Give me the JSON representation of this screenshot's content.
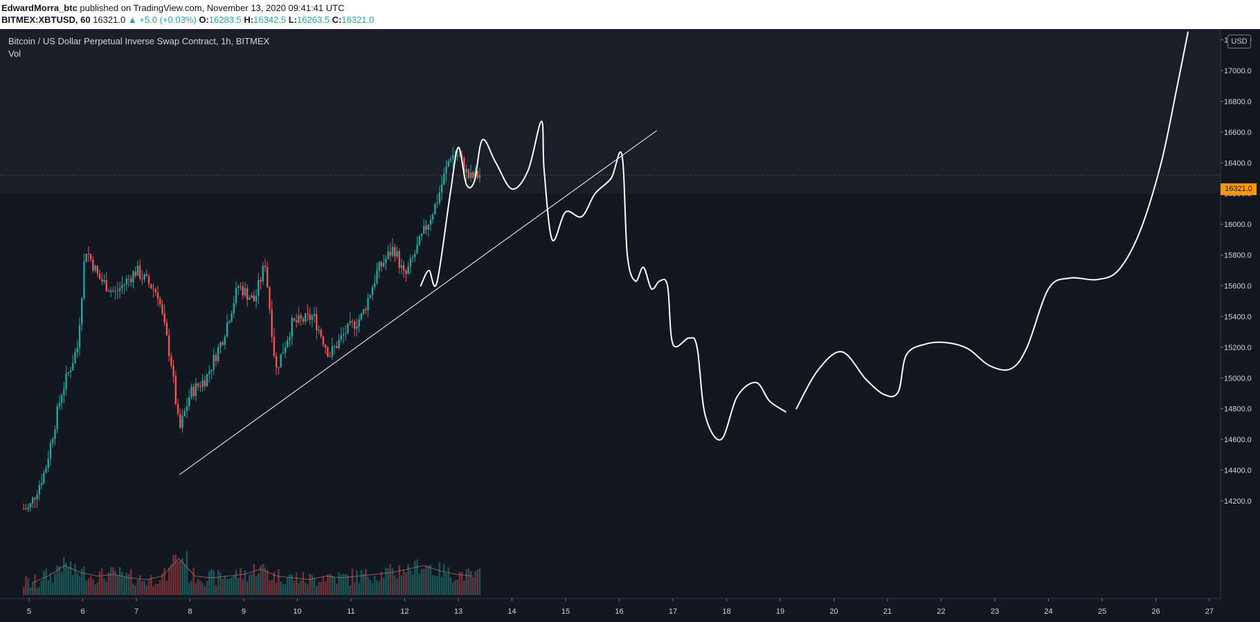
{
  "header": {
    "author": "EdwardMorra_btc",
    "published": " published on TradingView.com, November 13, 2020 09:41:41 UTC",
    "symbol": "BITMEX:XBTUSD, 60",
    "last": "16321.0",
    "change": "▲ +5.0 (+0.03%)",
    "o_label": "O:",
    "o_value": "16283.5",
    "h_label": "H:",
    "h_value": "16342.5",
    "l_label": "L:",
    "l_value": "16263.5",
    "c_label": "C:",
    "c_value": "16321.0"
  },
  "legend": {
    "title": "Bitcoin / US Dollar Perpetual Inverse Swap Contract, 1h, BITMEX",
    "vol": "Vol"
  },
  "price_axis": {
    "currency": "USD",
    "current_price": "16321.0",
    "ticks": [
      "17200.0",
      "17000.0",
      "16800.0",
      "16600.0",
      "16400.0",
      "16200.0",
      "16000.0",
      "15800.0",
      "15600.0",
      "15400.0",
      "15200.0",
      "15000.0",
      "14800.0",
      "14600.0",
      "14400.0",
      "14200.0"
    ]
  },
  "colors": {
    "background": "#131722",
    "up": "#26a69a",
    "down": "#ef5350",
    "drawing": "#ffffff",
    "current_price": "#ff9800"
  },
  "chart_data": {
    "type": "candlestick",
    "x_unit": "day of November 2020",
    "x": [
      5,
      6,
      7,
      8,
      9,
      10,
      11,
      12,
      13,
      14,
      15,
      16,
      17,
      18,
      19,
      20,
      21,
      22,
      23,
      24,
      25,
      26,
      27
    ],
    "ylim": [
      14100,
      17200
    ],
    "price_points": [
      {
        "day": 5.0,
        "price": 14150
      },
      {
        "day": 5.3,
        "price": 14400
      },
      {
        "day": 5.6,
        "price": 14900
      },
      {
        "day": 5.9,
        "price": 15200
      },
      {
        "day": 6.05,
        "price": 15850
      },
      {
        "day": 6.3,
        "price": 15650
      },
      {
        "day": 6.6,
        "price": 15550
      },
      {
        "day": 7.0,
        "price": 15700
      },
      {
        "day": 7.4,
        "price": 15550
      },
      {
        "day": 7.65,
        "price": 15100
      },
      {
        "day": 7.8,
        "price": 14650
      },
      {
        "day": 8.0,
        "price": 14900
      },
      {
        "day": 8.3,
        "price": 15000
      },
      {
        "day": 8.6,
        "price": 15250
      },
      {
        "day": 8.9,
        "price": 15600
      },
      {
        "day": 9.2,
        "price": 15500
      },
      {
        "day": 9.4,
        "price": 15750
      },
      {
        "day": 9.6,
        "price": 15050
      },
      {
        "day": 9.9,
        "price": 15350
      },
      {
        "day": 10.3,
        "price": 15400
      },
      {
        "day": 10.6,
        "price": 15150
      },
      {
        "day": 10.9,
        "price": 15300
      },
      {
        "day": 11.2,
        "price": 15400
      },
      {
        "day": 11.5,
        "price": 15700
      },
      {
        "day": 11.8,
        "price": 15850
      },
      {
        "day": 12.0,
        "price": 15650
      },
      {
        "day": 12.3,
        "price": 15900
      },
      {
        "day": 12.6,
        "price": 16150
      },
      {
        "day": 12.85,
        "price": 16450
      },
      {
        "day": 13.0,
        "price": 16450
      },
      {
        "day": 13.2,
        "price": 16300
      },
      {
        "day": 13.4,
        "price": 16321
      }
    ],
    "volume_scale": "relative 0–1",
    "volume_profile": [
      0.1,
      0.3,
      0.6,
      0.4,
      0.3,
      0.35,
      0.25,
      0.2,
      0.3,
      0.8,
      0.3,
      0.25,
      0.3,
      0.35,
      0.5,
      0.3,
      0.25,
      0.2,
      0.3,
      0.25,
      0.3,
      0.35,
      0.4,
      0.5,
      0.6,
      0.45,
      0.35,
      0.3
    ],
    "drawings": {
      "trendline": [
        {
          "day": 7.8,
          "price": 14370
        },
        {
          "day": 16.7,
          "price": 16610
        }
      ],
      "forecast_path": [
        {
          "day": 12.3,
          "price": 15600
        },
        {
          "day": 12.45,
          "price": 15700
        },
        {
          "day": 12.6,
          "price": 15620
        },
        {
          "day": 12.85,
          "price": 16200
        },
        {
          "day": 13.0,
          "price": 16500
        },
        {
          "day": 13.15,
          "price": 16260
        },
        {
          "day": 13.3,
          "price": 16280
        },
        {
          "day": 13.45,
          "price": 16550
        },
        {
          "day": 13.7,
          "price": 16400
        },
        {
          "day": 14.0,
          "price": 16230
        },
        {
          "day": 14.3,
          "price": 16350
        },
        {
          "day": 14.55,
          "price": 16670
        },
        {
          "day": 14.6,
          "price": 16350
        },
        {
          "day": 14.75,
          "price": 15900
        },
        {
          "day": 15.0,
          "price": 16080
        },
        {
          "day": 15.3,
          "price": 16050
        },
        {
          "day": 15.55,
          "price": 16200
        },
        {
          "day": 15.85,
          "price": 16300
        },
        {
          "day": 16.05,
          "price": 16450
        },
        {
          "day": 16.15,
          "price": 15800
        },
        {
          "day": 16.3,
          "price": 15630
        },
        {
          "day": 16.45,
          "price": 15720
        },
        {
          "day": 16.6,
          "price": 15580
        },
        {
          "day": 16.75,
          "price": 15630
        },
        {
          "day": 16.9,
          "price": 15600
        },
        {
          "day": 17.0,
          "price": 15220
        },
        {
          "day": 17.3,
          "price": 15260
        },
        {
          "day": 17.45,
          "price": 15200
        },
        {
          "day": 17.6,
          "price": 14760
        },
        {
          "day": 17.9,
          "price": 14600
        },
        {
          "day": 18.2,
          "price": 14880
        },
        {
          "day": 18.55,
          "price": 14970
        },
        {
          "day": 18.8,
          "price": 14850
        },
        {
          "day": 19.1,
          "price": 14780
        }
      ],
      "forecast_path_2": [
        {
          "day": 19.3,
          "price": 14800
        },
        {
          "day": 19.7,
          "price": 15050
        },
        {
          "day": 20.15,
          "price": 15170
        },
        {
          "day": 20.6,
          "price": 14990
        },
        {
          "day": 20.95,
          "price": 14890
        },
        {
          "day": 21.2,
          "price": 14910
        },
        {
          "day": 21.35,
          "price": 15150
        },
        {
          "day": 21.7,
          "price": 15220
        },
        {
          "day": 22.1,
          "price": 15230
        },
        {
          "day": 22.5,
          "price": 15190
        },
        {
          "day": 22.9,
          "price": 15080
        },
        {
          "day": 23.3,
          "price": 15060
        },
        {
          "day": 23.6,
          "price": 15200
        },
        {
          "day": 24.0,
          "price": 15580
        },
        {
          "day": 24.4,
          "price": 15650
        },
        {
          "day": 24.9,
          "price": 15640
        },
        {
          "day": 25.3,
          "price": 15700
        },
        {
          "day": 25.7,
          "price": 15950
        },
        {
          "day": 26.1,
          "price": 16400
        },
        {
          "day": 26.4,
          "price": 16900
        },
        {
          "day": 26.6,
          "price": 17250
        }
      ]
    }
  }
}
